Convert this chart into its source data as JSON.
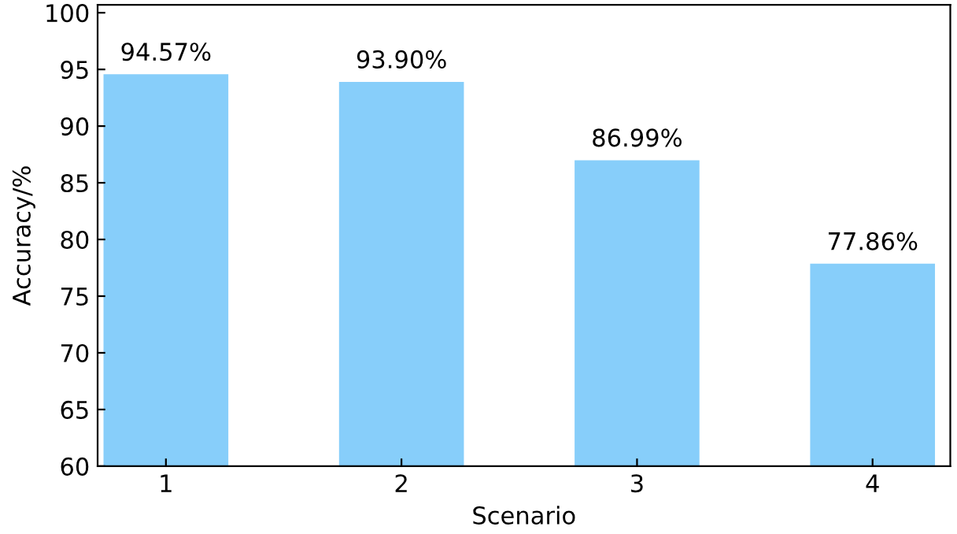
{
  "chart_data": {
    "type": "bar",
    "xlabel": "Scenario",
    "ylabel": "Accuracy/%",
    "categories": [
      "1",
      "2",
      "3",
      "4"
    ],
    "values": [
      94.57,
      93.9,
      86.99,
      77.86
    ],
    "value_labels": [
      "94.57%",
      "93.90%",
      "86.99%",
      "77.86%"
    ],
    "color": "#87cefa",
    "ylim": [
      60,
      100.7
    ],
    "yticks": [
      60,
      65,
      70,
      75,
      80,
      85,
      90,
      95,
      100
    ],
    "grid": false,
    "legend": false
  }
}
